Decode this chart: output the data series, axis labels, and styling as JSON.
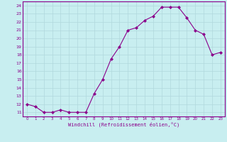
{
  "x": [
    0,
    1,
    2,
    3,
    4,
    5,
    6,
    7,
    8,
    9,
    10,
    11,
    12,
    13,
    14,
    15,
    16,
    17,
    18,
    19,
    20,
    21,
    22,
    23
  ],
  "y": [
    12.0,
    11.7,
    11.0,
    11.0,
    11.3,
    11.0,
    11.0,
    11.0,
    13.3,
    15.0,
    17.5,
    19.0,
    21.0,
    21.3,
    22.2,
    22.7,
    23.8,
    23.8,
    23.8,
    22.5,
    21.0,
    20.5,
    18.0,
    18.3
  ],
  "line_color": "#8B008B",
  "marker": "D",
  "marker_size": 2,
  "bg_color": "#c8eef0",
  "grid_color": "#b0d8dc",
  "xlabel": "Windchill (Refroidissement éolien,°C)",
  "ylabel_ticks": [
    11,
    12,
    13,
    14,
    15,
    16,
    17,
    18,
    19,
    20,
    21,
    22,
    23,
    24
  ],
  "ylim": [
    10.5,
    24.5
  ],
  "xlim": [
    -0.5,
    23.5
  ],
  "font_color": "#8B008B"
}
